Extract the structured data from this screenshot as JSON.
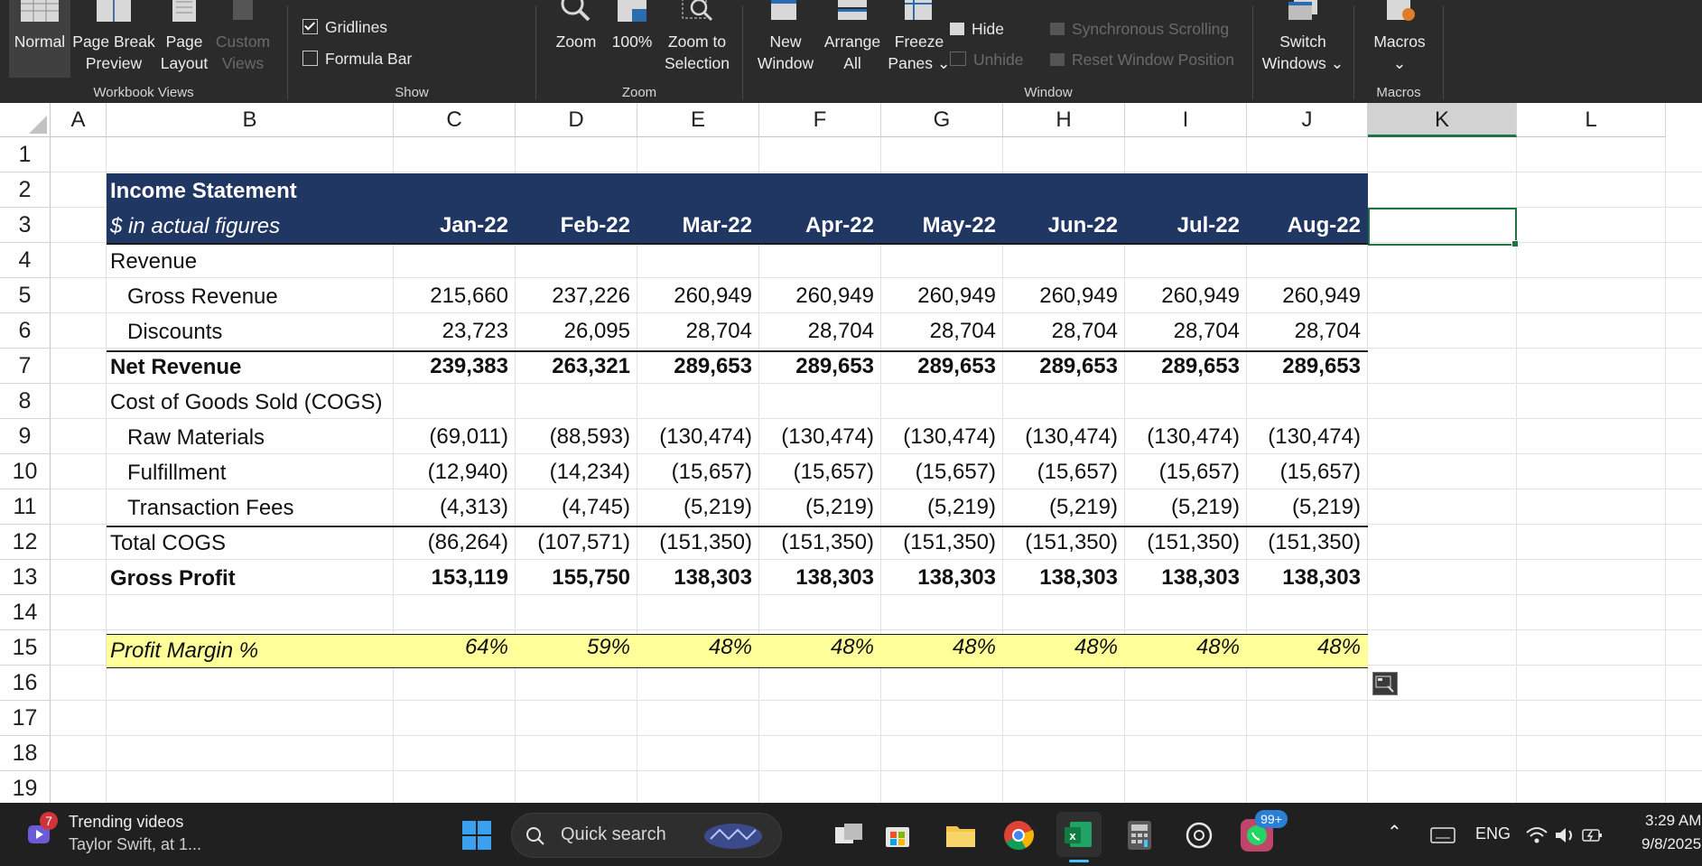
{
  "ribbon": {
    "workbook_views": {
      "label": "Workbook Views",
      "normal": "Normal",
      "page_break_1": "Page Break",
      "page_break_2": "Preview",
      "page_layout_1": "Page",
      "page_layout_2": "Layout",
      "custom_views_1": "Custom",
      "custom_views_2": "Views"
    },
    "show": {
      "label": "Show",
      "gridlines": "Gridlines",
      "formula_bar": "Formula Bar"
    },
    "zoom": {
      "label": "Zoom",
      "zoom": "Zoom",
      "hundred": "100%",
      "zoom_sel_1": "Zoom to",
      "zoom_sel_2": "Selection"
    },
    "window": {
      "label": "Window",
      "new_window_1": "New",
      "new_window_2": "Window",
      "arrange_1": "Arrange",
      "arrange_2": "All",
      "freeze_1": "Freeze",
      "freeze_2": "Panes ⌄",
      "hide": "Hide",
      "unhide": "Unhide",
      "sync_scroll": "Synchronous Scrolling",
      "reset_pos": "Reset Window Position",
      "switch_1": "Switch",
      "switch_2": "Windows ⌄"
    },
    "macros": {
      "label": "Macros",
      "macros_1": "Macros",
      "macros_2": "⌄"
    }
  },
  "columns": [
    "A",
    "B",
    "C",
    "D",
    "E",
    "F",
    "G",
    "H",
    "I",
    "J",
    "K",
    "L"
  ],
  "active_column": "K",
  "rows": [
    "1",
    "2",
    "3",
    "4",
    "5",
    "6",
    "7",
    "8",
    "9",
    "10",
    "11",
    "12",
    "13",
    "14",
    "15",
    "16",
    "17",
    "18",
    "19"
  ],
  "sheet": {
    "title": "Income Statement",
    "subtitle": "$ in actual figures",
    "months": [
      "Jan-22",
      "Feb-22",
      "Mar-22",
      "Apr-22",
      "May-22",
      "Jun-22",
      "Jul-22",
      "Aug-22"
    ],
    "revenue_label": "Revenue",
    "gross_revenue": {
      "label": "Gross Revenue",
      "values": [
        "215,660",
        "237,226",
        "260,949",
        "260,949",
        "260,949",
        "260,949",
        "260,949",
        "260,949"
      ]
    },
    "discounts": {
      "label": "Discounts",
      "values": [
        "23,723",
        "26,095",
        "28,704",
        "28,704",
        "28,704",
        "28,704",
        "28,704",
        "28,704"
      ]
    },
    "net_revenue": {
      "label": "Net Revenue",
      "values": [
        "239,383",
        "263,321",
        "289,653",
        "289,653",
        "289,653",
        "289,653",
        "289,653",
        "289,653"
      ]
    },
    "cogs_label": "Cost of Goods Sold (COGS)",
    "raw_materials": {
      "label": "Raw Materials",
      "values": [
        "(69,011)",
        "(88,593)",
        "(130,474)",
        "(130,474)",
        "(130,474)",
        "(130,474)",
        "(130,474)",
        "(130,474)"
      ]
    },
    "fulfillment": {
      "label": "Fulfillment",
      "values": [
        "(12,940)",
        "(14,234)",
        "(15,657)",
        "(15,657)",
        "(15,657)",
        "(15,657)",
        "(15,657)",
        "(15,657)"
      ]
    },
    "transaction_fees": {
      "label": "Transaction Fees",
      "values": [
        "(4,313)",
        "(4,745)",
        "(5,219)",
        "(5,219)",
        "(5,219)",
        "(5,219)",
        "(5,219)",
        "(5,219)"
      ]
    },
    "total_cogs": {
      "label": "Total COGS",
      "values": [
        "(86,264)",
        "(107,571)",
        "(151,350)",
        "(151,350)",
        "(151,350)",
        "(151,350)",
        "(151,350)",
        "(151,350)"
      ]
    },
    "gross_profit": {
      "label": "Gross Profit",
      "values": [
        "153,119",
        "155,750",
        "138,303",
        "138,303",
        "138,303",
        "138,303",
        "138,303",
        "138,303"
      ]
    },
    "profit_margin": {
      "label": "Profit Margin %",
      "values": [
        "64%",
        "59%",
        "48%",
        "48%",
        "48%",
        "48%",
        "48%",
        "48%"
      ]
    }
  },
  "taskbar": {
    "widget_badge": "7",
    "widget_title": "Trending videos",
    "widget_sub": "Taylor Swift, at 1...",
    "search_placeholder": "Quick search",
    "whatsapp_badge": "99+",
    "lang": "ENG",
    "time": "3:29 AM",
    "date": "9/8/2025"
  },
  "colors": {
    "ribbon_bg": "#2b2b2b",
    "header_band": "#203764",
    "margin_band": "#ffff99",
    "excel_green": "#217346",
    "taskbar_bg": "#202020"
  }
}
